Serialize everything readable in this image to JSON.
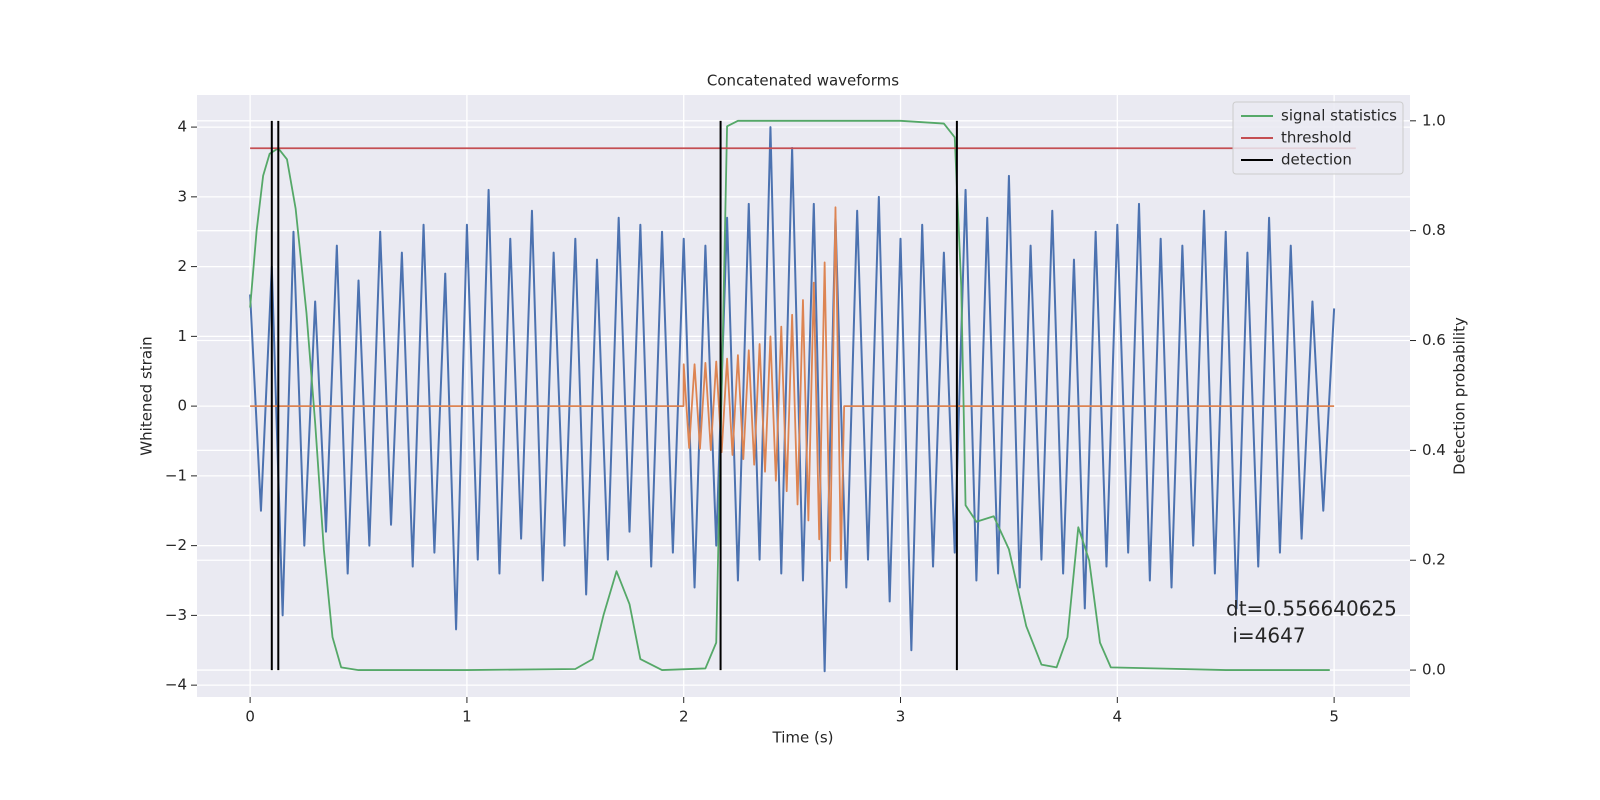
{
  "chart_data": {
    "type": "line",
    "title": "Concatenated waveforms",
    "xlabel": "Time (s)",
    "ylabel": "Whitened strain",
    "y2label": "Detection probability",
    "xlim": [
      -0.245,
      5.35
    ],
    "ylim": [
      -4.17,
      4.46
    ],
    "y2lim": [
      -0.049,
      1.047
    ],
    "xticks": [
      0,
      1,
      2,
      3,
      4,
      5
    ],
    "yticks": [
      {
        "value": -4,
        "label": "−4"
      },
      {
        "value": -3,
        "label": "−3"
      },
      {
        "value": -2,
        "label": "−2"
      },
      {
        "value": -1,
        "label": "−1"
      },
      0,
      1,
      2,
      3,
      4
    ],
    "y2ticks": [
      {
        "value": 0,
        "label": "0.0"
      },
      {
        "value": 0.2,
        "label": "0.2"
      },
      {
        "value": 0.4,
        "label": "0.4"
      },
      {
        "value": 0.6,
        "label": "0.6"
      },
      {
        "value": 0.8,
        "label": "0.8"
      },
      {
        "value": 1,
        "label": "1.0"
      }
    ],
    "grid": true,
    "legend": "upper right",
    "annotations": [
      "dt=0.556640625",
      " i=4647"
    ],
    "series": [
      {
        "color": "#4c72b0",
        "x": [
          0,
          0.05,
          0.1,
          0.15,
          0.2,
          0.25,
          0.3,
          0.35,
          0.4,
          0.45,
          0.5,
          0.55,
          0.6,
          0.65,
          0.7,
          0.75,
          0.8,
          0.85,
          0.9,
          0.95,
          1.0,
          1.05,
          1.1,
          1.15,
          1.2,
          1.25,
          1.3,
          1.35,
          1.4,
          1.45,
          1.5,
          1.55,
          1.6,
          1.65,
          1.7,
          1.75,
          1.8,
          1.85,
          1.9,
          1.95,
          2.0,
          2.05,
          2.1,
          2.15,
          2.2,
          2.25,
          2.3,
          2.35,
          2.4,
          2.45,
          2.5,
          2.55,
          2.6,
          2.65,
          2.7,
          2.75,
          2.8,
          2.85,
          2.9,
          2.95,
          3.0,
          3.05,
          3.1,
          3.15,
          3.2,
          3.25,
          3.3,
          3.35,
          3.4,
          3.45,
          3.5,
          3.55,
          3.6,
          3.65,
          3.7,
          3.75,
          3.8,
          3.85,
          3.9,
          3.95,
          4.0,
          4.05,
          4.1,
          4.15,
          4.2,
          4.25,
          4.3,
          4.35,
          4.4,
          4.45,
          4.5,
          4.55,
          4.6,
          4.65,
          4.7,
          4.75,
          4.8,
          4.85,
          4.9,
          4.95,
          5.0
        ],
        "values": [
          1.6,
          -1.5,
          2.0,
          -3.0,
          2.5,
          -2.0,
          1.5,
          -1.8,
          2.3,
          -2.4,
          1.8,
          -2.0,
          2.5,
          -1.7,
          2.2,
          -2.3,
          2.6,
          -2.1,
          1.9,
          -3.2,
          2.6,
          -2.2,
          3.1,
          -2.4,
          2.4,
          -1.9,
          2.8,
          -2.5,
          2.2,
          -2.0,
          2.4,
          -2.7,
          2.1,
          -2.2,
          2.7,
          -1.8,
          2.6,
          -2.3,
          2.5,
          -2.1,
          2.4,
          -2.6,
          2.3,
          -2.0,
          2.7,
          -2.5,
          2.9,
          -2.2,
          4.0,
          -2.4,
          3.7,
          -2.5,
          2.9,
          -3.8,
          2.7,
          -2.6,
          2.8,
          -2.2,
          3.0,
          -2.8,
          2.4,
          -3.5,
          2.6,
          -2.3,
          2.2,
          -2.1,
          3.1,
          -2.5,
          2.7,
          -2.4,
          3.3,
          -2.6,
          2.3,
          -2.2,
          2.8,
          -2.4,
          2.1,
          -2.9,
          2.5,
          -2.3,
          2.6,
          -2.1,
          2.9,
          -2.5,
          2.4,
          -2.6,
          2.3,
          -2.0,
          2.8,
          -2.4,
          2.5,
          -2.9,
          2.2,
          -2.3,
          2.7,
          -2.1,
          2.3,
          -1.9,
          1.5,
          -1.5,
          1.4
        ]
      },
      {
        "color": "#dd8452",
        "x": [
          0,
          1.999,
          2.0,
          2.025,
          2.05,
          2.075,
          2.1,
          2.125,
          2.15,
          2.175,
          2.2,
          2.225,
          2.25,
          2.275,
          2.3,
          2.325,
          2.35,
          2.375,
          2.4,
          2.425,
          2.45,
          2.475,
          2.5,
          2.525,
          2.55,
          2.575,
          2.6,
          2.625,
          2.65,
          2.675,
          2.7,
          2.725,
          2.74,
          5.0
        ],
        "values": [
          0,
          0,
          0.6,
          -0.6,
          0.6,
          -0.61,
          0.62,
          -0.63,
          0.64,
          -0.66,
          0.68,
          -0.7,
          0.73,
          -0.76,
          0.8,
          -0.84,
          0.89,
          -0.94,
          1.0,
          -1.07,
          1.14,
          -1.22,
          1.31,
          -1.41,
          1.52,
          -1.64,
          1.77,
          -1.91,
          2.06,
          -2.22,
          2.85,
          -2.2,
          0,
          0
        ]
      },
      {
        "name": "signal statistics",
        "color": "#55a868",
        "axis": "y2",
        "x": [
          0,
          0.03,
          0.06,
          0.09,
          0.13,
          0.17,
          0.21,
          0.26,
          0.3,
          0.34,
          0.38,
          0.42,
          0.5,
          1.0,
          1.5,
          1.58,
          1.63,
          1.69,
          1.75,
          1.8,
          1.9,
          2.1,
          2.15,
          2.18,
          2.2,
          2.25,
          2.5,
          3.0,
          3.2,
          3.25,
          3.28,
          3.3,
          3.35,
          3.43,
          3.5,
          3.58,
          3.65,
          3.72,
          3.77,
          3.82,
          3.87,
          3.92,
          3.97,
          4.5,
          4.98
        ],
        "values": [
          0.66,
          0.8,
          0.9,
          0.94,
          0.95,
          0.93,
          0.84,
          0.65,
          0.45,
          0.22,
          0.06,
          0.005,
          0,
          0,
          0.002,
          0.02,
          0.1,
          0.18,
          0.12,
          0.02,
          0,
          0.003,
          0.05,
          0.6,
          0.99,
          1.0,
          1.0,
          1.0,
          0.995,
          0.97,
          0.7,
          0.3,
          0.27,
          0.28,
          0.22,
          0.08,
          0.01,
          0.005,
          0.06,
          0.26,
          0.2,
          0.05,
          0.005,
          0,
          0
        ]
      },
      {
        "name": "threshold",
        "color": "#c44e52",
        "axis": "y2",
        "x": [
          0,
          5.1
        ],
        "values": [
          0.95,
          0.95
        ]
      },
      {
        "name": "detection",
        "color": "#000000",
        "axis": "y2",
        "style": "vlines",
        "x": [
          0.1,
          0.13,
          2.17,
          3.26
        ],
        "ymin": 0,
        "ymax": 1
      }
    ]
  }
}
